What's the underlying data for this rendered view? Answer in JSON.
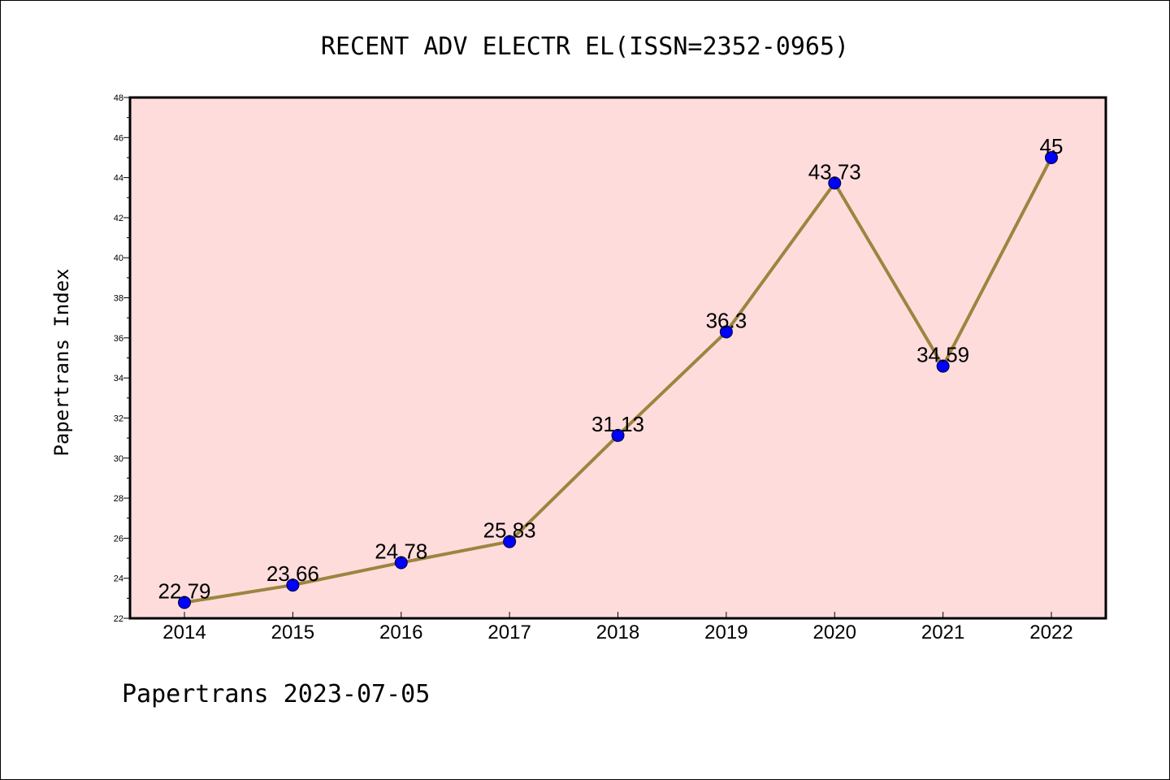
{
  "chart_data": {
    "type": "line",
    "title": "RECENT ADV ELECTR EL(ISSN=2352-0965)",
    "ylabel": "Papertrans Index",
    "xlabel": "",
    "footer": "Papertrans 2023-07-05",
    "categories": [
      "2014",
      "2015",
      "2016",
      "2017",
      "2018",
      "2019",
      "2020",
      "2021",
      "2022"
    ],
    "values": [
      22.79,
      23.66,
      24.78,
      25.83,
      31.13,
      36.3,
      43.73,
      34.59,
      45
    ],
    "value_labels": [
      "22.79",
      "23.66",
      "24.78",
      "25.83",
      "31.13",
      "36.3",
      "43.73",
      "34.59",
      "45"
    ],
    "ylim": [
      22,
      48
    ],
    "yticks": [
      "22",
      "24",
      "26",
      "28",
      "30",
      "32",
      "34",
      "36",
      "38",
      "40",
      "42",
      "44",
      "46",
      "48"
    ],
    "grid": false,
    "colors": {
      "plot_background": "#ffdcdc",
      "line": "#9b8540",
      "marker": "#0000ff"
    }
  }
}
